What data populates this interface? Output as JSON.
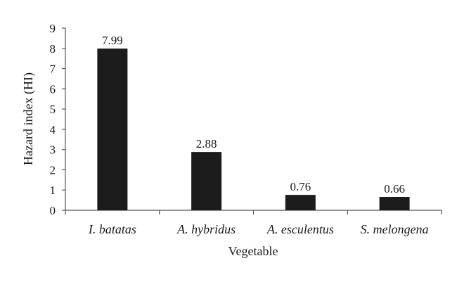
{
  "chart_data": {
    "type": "bar",
    "categories": [
      "I. batatas",
      "A. hybridus",
      "A. esculentus",
      "S. melongena"
    ],
    "values": [
      7.99,
      2.88,
      0.76,
      0.66
    ],
    "data_labels": [
      "7.99",
      "2.88",
      "0.76",
      "0.66"
    ],
    "title": "",
    "xlabel": "Vegetable",
    "ylabel": "Hazard index (HI)",
    "ylim": [
      0,
      9
    ],
    "yticks": [
      0,
      1,
      2,
      3,
      4,
      5,
      6,
      7,
      8,
      9
    ],
    "grid": false,
    "legend": "none",
    "bar_color": "#1c1c1c"
  }
}
